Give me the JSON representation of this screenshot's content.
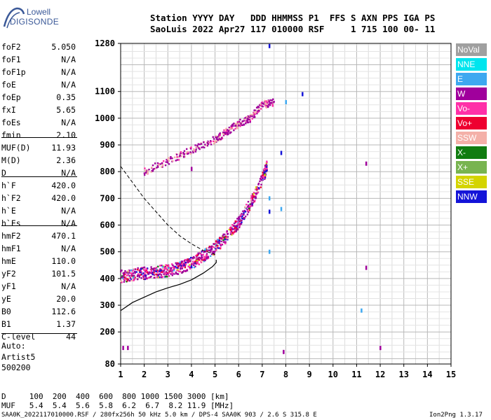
{
  "logo": {
    "line1": "Lowell",
    "line2": "DIGISONDE"
  },
  "header": {
    "line1": "Station YYYY DAY   DDD HHMMSS P1  FFS S AXN PPS IGA PS",
    "line2": "SaoLuis 2022 Apr27 117 010000 RSF     1 715 100 00- 11"
  },
  "params": [
    {
      "label": "foF2",
      "value": "5.050"
    },
    {
      "label": "foF1",
      "value": "N/A"
    },
    {
      "label": "foF1p",
      "value": "N/A"
    },
    {
      "label": "foE",
      "value": "N/A"
    },
    {
      "label": "foEp",
      "value": "0.35"
    },
    {
      "label": "fxI",
      "value": "5.65"
    },
    {
      "label": "foEs",
      "value": "N/A"
    },
    {
      "label": "fmin",
      "value": "2.10"
    },
    {
      "label": "MUF(D)",
      "value": "11.93"
    },
    {
      "label": "M(D)",
      "value": "2.36"
    },
    {
      "label": "D",
      "value": "N/A"
    },
    {
      "label": "h`F",
      "value": "420.0"
    },
    {
      "label": "h`F2",
      "value": "420.0"
    },
    {
      "label": "h`E",
      "value": "N/A"
    },
    {
      "label": "h`Es",
      "value": "N/A"
    },
    {
      "label": "hmF2",
      "value": "470.1"
    },
    {
      "label": "hmF1",
      "value": "N/A"
    },
    {
      "label": "hmE",
      "value": "110.0"
    },
    {
      "label": "yF2",
      "value": "101.5"
    },
    {
      "label": "yF1",
      "value": "N/A"
    },
    {
      "label": "yE",
      "value": "20.0"
    },
    {
      "label": "B0",
      "value": "112.6"
    },
    {
      "label": "B1",
      "value": "1.37"
    },
    {
      "label": "C-level",
      "value": "44"
    }
  ],
  "auto": {
    "l1": "Auto:",
    "l2": "Artist5",
    "l3": "500200"
  },
  "legend": [
    {
      "label": "NoVal",
      "color": "#a0a0a0"
    },
    {
      "label": "NNE",
      "color": "#00e5ee"
    },
    {
      "label": "E",
      "color": "#3ea8f0"
    },
    {
      "label": "W",
      "color": "#a0009c"
    },
    {
      "label": "Vo-",
      "color": "#ff2fa8"
    },
    {
      "label": "Vo+",
      "color": "#ee0030"
    },
    {
      "label": "SSW",
      "color": "#f4b0a8"
    },
    {
      "label": "X-",
      "color": "#107c10"
    },
    {
      "label": "X+",
      "color": "#78b450"
    },
    {
      "label": "SSE",
      "color": "#d4d400"
    },
    {
      "label": "NNW",
      "color": "#1414d8"
    }
  ],
  "footer": {
    "line1": "D     100  200  400  600  800 1000 1500 3000 [km]",
    "line2": "MUF   5.4  5.4  5.6  5.8  6.2  6.7  8.2 11.9 [MHz]",
    "file": "SAA0K_2022117010000.RSF / 280fx256h 50 kHz 5.0 km / DPS-4 SAA0K 903 / 2.6 S 315.8 E",
    "version": "Ion2Png 1.3.17"
  },
  "chart_data": {
    "type": "scatter",
    "title": "",
    "xlabel": "",
    "ylabel": "",
    "xlim": [
      1,
      15
    ],
    "ylim": [
      80,
      1280
    ],
    "xticks": [
      1,
      2,
      3,
      4,
      5,
      6,
      7,
      8,
      9,
      10,
      11,
      12,
      13,
      14,
      15
    ],
    "yticks": [
      80,
      200,
      300,
      400,
      500,
      600,
      700,
      800,
      900,
      1000,
      1100,
      1280
    ],
    "trace_F_lower": [
      [
        1.0,
        408
      ],
      [
        1.5,
        415
      ],
      [
        2.0,
        420
      ],
      [
        2.5,
        425
      ],
      [
        3.0,
        430
      ],
      [
        3.5,
        440
      ],
      [
        4.0,
        458
      ],
      [
        4.5,
        485
      ],
      [
        5.0,
        515
      ],
      [
        5.5,
        560
      ],
      [
        6.0,
        610
      ],
      [
        6.5,
        680
      ],
      [
        7.0,
        770
      ],
      [
        7.2,
        820
      ]
    ],
    "trace_F_upper": [
      [
        2.0,
        800
      ],
      [
        3.0,
        840
      ],
      [
        4.0,
        880
      ],
      [
        5.0,
        920
      ],
      [
        5.5,
        950
      ],
      [
        6.0,
        980
      ],
      [
        6.5,
        1000
      ],
      [
        7.0,
        1050
      ],
      [
        7.5,
        1060
      ]
    ],
    "profile_curve": [
      [
        1.0,
        280
      ],
      [
        1.5,
        310
      ],
      [
        2.0,
        330
      ],
      [
        2.5,
        350
      ],
      [
        3.0,
        365
      ],
      [
        3.5,
        378
      ],
      [
        4.0,
        395
      ],
      [
        4.5,
        420
      ],
      [
        4.9,
        445
      ],
      [
        5.05,
        460
      ],
      [
        5.05,
        470
      ]
    ],
    "muf_dashed_curve": [
      [
        1.0,
        820
      ],
      [
        1.5,
        760
      ],
      [
        2.0,
        700
      ],
      [
        2.5,
        650
      ],
      [
        3.0,
        600
      ],
      [
        3.5,
        560
      ],
      [
        4.0,
        530
      ],
      [
        4.5,
        505
      ],
      [
        5.0,
        490
      ]
    ],
    "sporadic_points": [
      [
        7.3,
        1270
      ],
      [
        8.0,
        1060
      ],
      [
        8.7,
        1090
      ],
      [
        7.8,
        870
      ],
      [
        7.3,
        700
      ],
      [
        7.3,
        650
      ],
      [
        7.3,
        500
      ],
      [
        7.8,
        660
      ],
      [
        11.2,
        280
      ],
      [
        11.4,
        440
      ],
      [
        12.0,
        140
      ],
      [
        1.1,
        140
      ],
      [
        1.3,
        140
      ],
      [
        7.9,
        125
      ],
      [
        4.0,
        810
      ],
      [
        11.4,
        830
      ]
    ]
  }
}
